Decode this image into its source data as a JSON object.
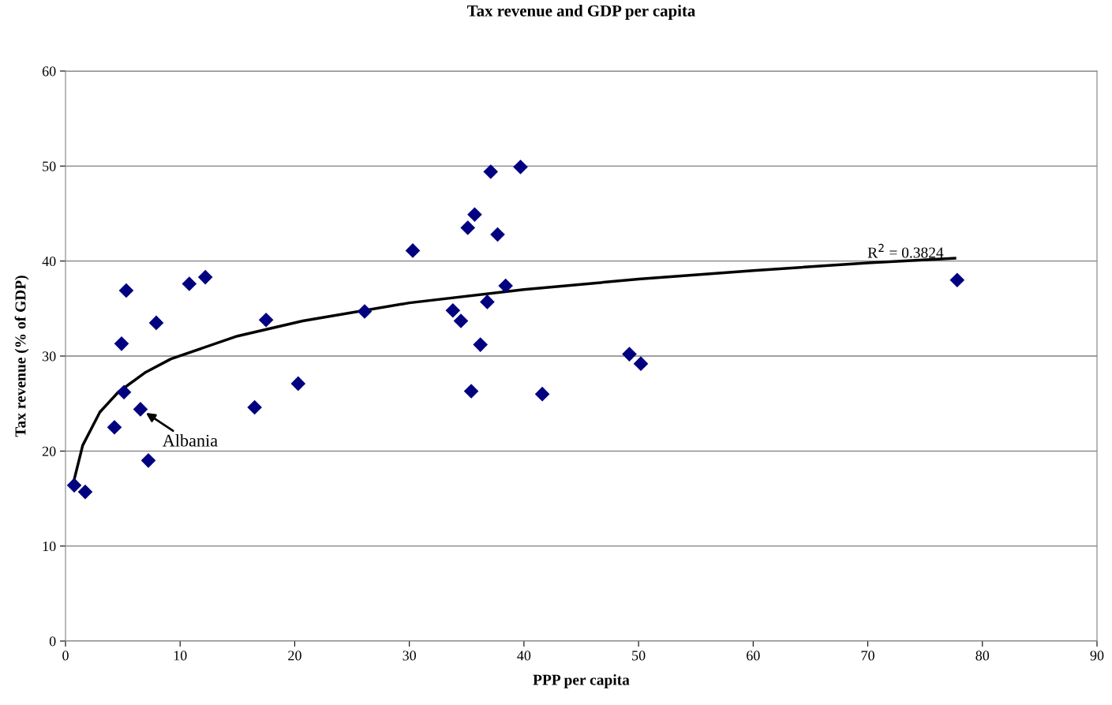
{
  "chart_data": {
    "type": "scatter",
    "title": "Tax revenue and GDP per capita",
    "xlabel": "PPP per capita",
    "ylabel": "Tax revenue (% of GDP)",
    "xlim": [
      0,
      90
    ],
    "xticks": [
      0,
      10,
      20,
      30,
      40,
      50,
      60,
      70,
      80,
      90
    ],
    "ylim": [
      0,
      60
    ],
    "yticks": [
      0,
      10,
      20,
      30,
      40,
      50,
      60
    ],
    "grid": "y",
    "legend": false,
    "series": [
      {
        "marker": "diamond",
        "color": "#000080",
        "x": [
          0.76,
          1.72,
          4.27,
          4.89,
          5.1,
          5.3,
          6.54,
          7.23,
          7.92,
          10.8,
          12.2,
          16.5,
          17.5,
          20.3,
          26.1,
          30.3,
          33.8,
          34.5,
          35.1,
          35.4,
          35.7,
          36.2,
          36.8,
          37.1,
          37.7,
          38.4,
          39.7,
          41.6,
          49.2,
          50.2,
          77.8
        ],
        "values": [
          16.4,
          15.7,
          22.5,
          31.3,
          26.2,
          36.9,
          24.4,
          19.0,
          33.5,
          37.6,
          38.3,
          24.6,
          33.8,
          27.1,
          34.7,
          41.1,
          34.8,
          33.7,
          43.5,
          26.3,
          44.9,
          31.2,
          35.7,
          49.4,
          42.8,
          37.4,
          49.9,
          26.0,
          30.2,
          29.2,
          38.0
        ]
      },
      {
        "type": "line",
        "color": "#000000",
        "x": [
          0.76,
          1.5,
          2.27,
          3,
          4.6,
          7,
          9.2,
          15,
          20.7,
          30,
          40,
          50,
          60,
          70,
          77.6
        ],
        "values": [
          17.0,
          20.6,
          22.4,
          24.1,
          26.2,
          28.3,
          29.7,
          32.1,
          33.7,
          35.6,
          37.0,
          38.1,
          39.0,
          39.8,
          40.3
        ]
      }
    ],
    "annotations": [
      {
        "text": "Albania",
        "x": 6.54,
        "y": 24.4
      },
      {
        "text": "R$^{2}$ = 0.3824",
        "x": 73.3,
        "y": 40.0
      }
    ]
  }
}
